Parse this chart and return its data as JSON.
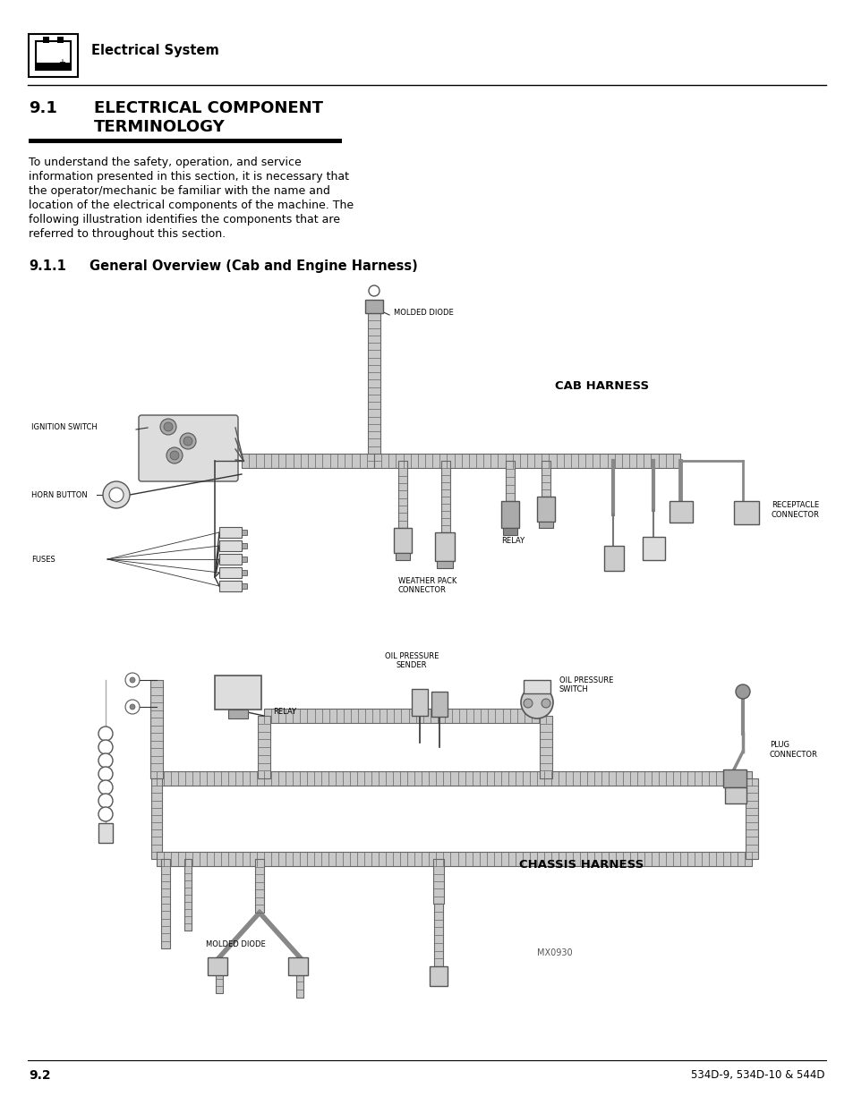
{
  "page_bg": "#ffffff",
  "header_icon_text": "Electrical System",
  "section_num": "9.1",
  "section_title_line1": "ELECTRICAL COMPONENT",
  "section_title_line2": "TERMINOLOGY",
  "body_text": "To understand the safety, operation, and service\ninformation presented in this section, it is necessary that\nthe operator/mechanic be familiar with the name and\nlocation of the electrical components of the machine. The\nfollowing illustration identifies the components that are\nreferred to throughout this section.",
  "subsection_num": "9.1.1",
  "subsection_title": "General Overview (Cab and Engine Harness)",
  "cab_harness_label": "CAB HARNESS",
  "chassis_harness_label": "CHASSIS HARNESS",
  "mx_label": "MX0930",
  "page_num_left": "9.2",
  "page_num_right": "534D-9, 534D-10 & 544D",
  "body_fontsize": 9.0,
  "title_fontsize": 13,
  "subsection_fontsize": 10.5,
  "label_fontsize": 6.0,
  "harness_fontsize": 9.5
}
